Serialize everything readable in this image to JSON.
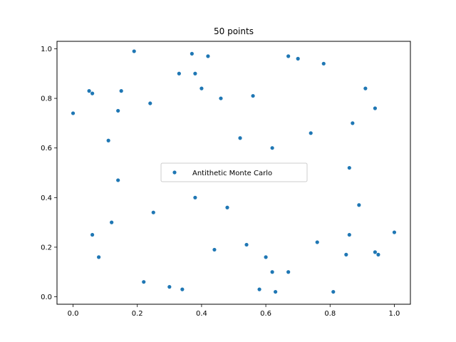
{
  "chart_data": {
    "type": "scatter",
    "title": "50 points",
    "xlabel": "",
    "ylabel": "",
    "xlim": [
      -0.05,
      1.05
    ],
    "ylim": [
      -0.03,
      1.03
    ],
    "xticks": [
      "0.0",
      "0.2",
      "0.4",
      "0.6",
      "0.8",
      "1.0"
    ],
    "yticks": [
      "0.0",
      "0.2",
      "0.4",
      "0.6",
      "0.8",
      "1.0"
    ],
    "grid": false,
    "legend_position": "center",
    "series": [
      {
        "name": "Antithetic Monte Carlo",
        "color": "#1f77b4",
        "x": [
          0.0,
          0.05,
          0.06,
          0.14,
          0.15,
          0.19,
          0.24,
          0.33,
          0.37,
          0.38,
          0.4,
          0.42,
          0.46,
          0.56,
          0.67,
          0.7,
          0.78,
          0.91,
          0.94,
          0.87,
          0.11,
          0.52,
          0.62,
          0.74,
          0.14,
          0.86,
          0.38,
          0.48,
          0.89,
          0.25,
          0.06,
          0.12,
          0.54,
          0.44,
          0.08,
          0.6,
          0.76,
          0.86,
          1.0,
          0.94,
          0.95,
          0.85,
          0.62,
          0.67,
          0.22,
          0.3,
          0.34,
          0.58,
          0.63,
          0.81
        ],
        "y": [
          0.74,
          0.83,
          0.82,
          0.75,
          0.83,
          0.99,
          0.78,
          0.9,
          0.98,
          0.9,
          0.84,
          0.97,
          0.8,
          0.81,
          0.97,
          0.96,
          0.94,
          0.84,
          0.76,
          0.7,
          0.63,
          0.64,
          0.6,
          0.66,
          0.47,
          0.52,
          0.4,
          0.36,
          0.37,
          0.34,
          0.25,
          0.3,
          0.21,
          0.19,
          0.16,
          0.16,
          0.22,
          0.25,
          0.26,
          0.18,
          0.17,
          0.17,
          0.1,
          0.1,
          0.06,
          0.04,
          0.03,
          0.03,
          0.02,
          0.02
        ]
      }
    ]
  }
}
